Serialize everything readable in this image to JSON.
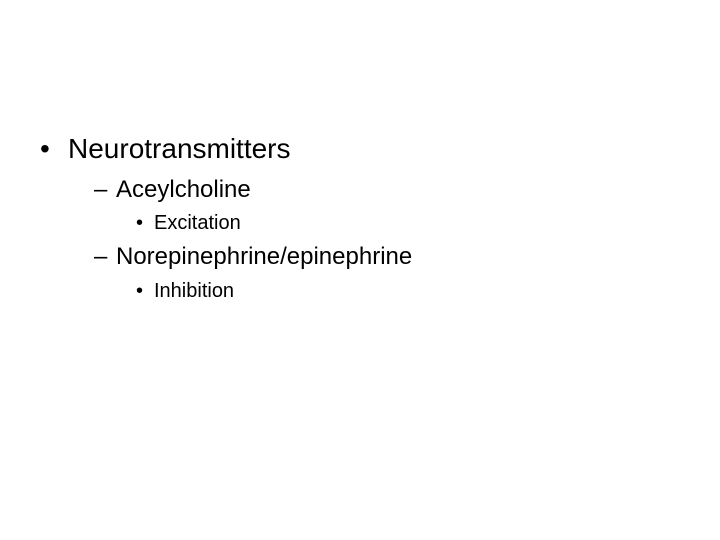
{
  "outline": {
    "level1": {
      "bullet": "•",
      "text": "Neurotransmitters"
    },
    "item1": {
      "dash": "–",
      "text": "Aceylcholine",
      "sub": {
        "bullet": "•",
        "text": "Excitation"
      }
    },
    "item2": {
      "dash": "–",
      "text": "Norepinephrine/epinephrine",
      "sub": {
        "bullet": "•",
        "text": "Inhibition"
      }
    }
  },
  "style": {
    "background_color": "#ffffff",
    "text_color": "#000000",
    "font_family": "Arial",
    "level1_fontsize": 28,
    "level2_fontsize": 24,
    "level3_fontsize": 20
  }
}
